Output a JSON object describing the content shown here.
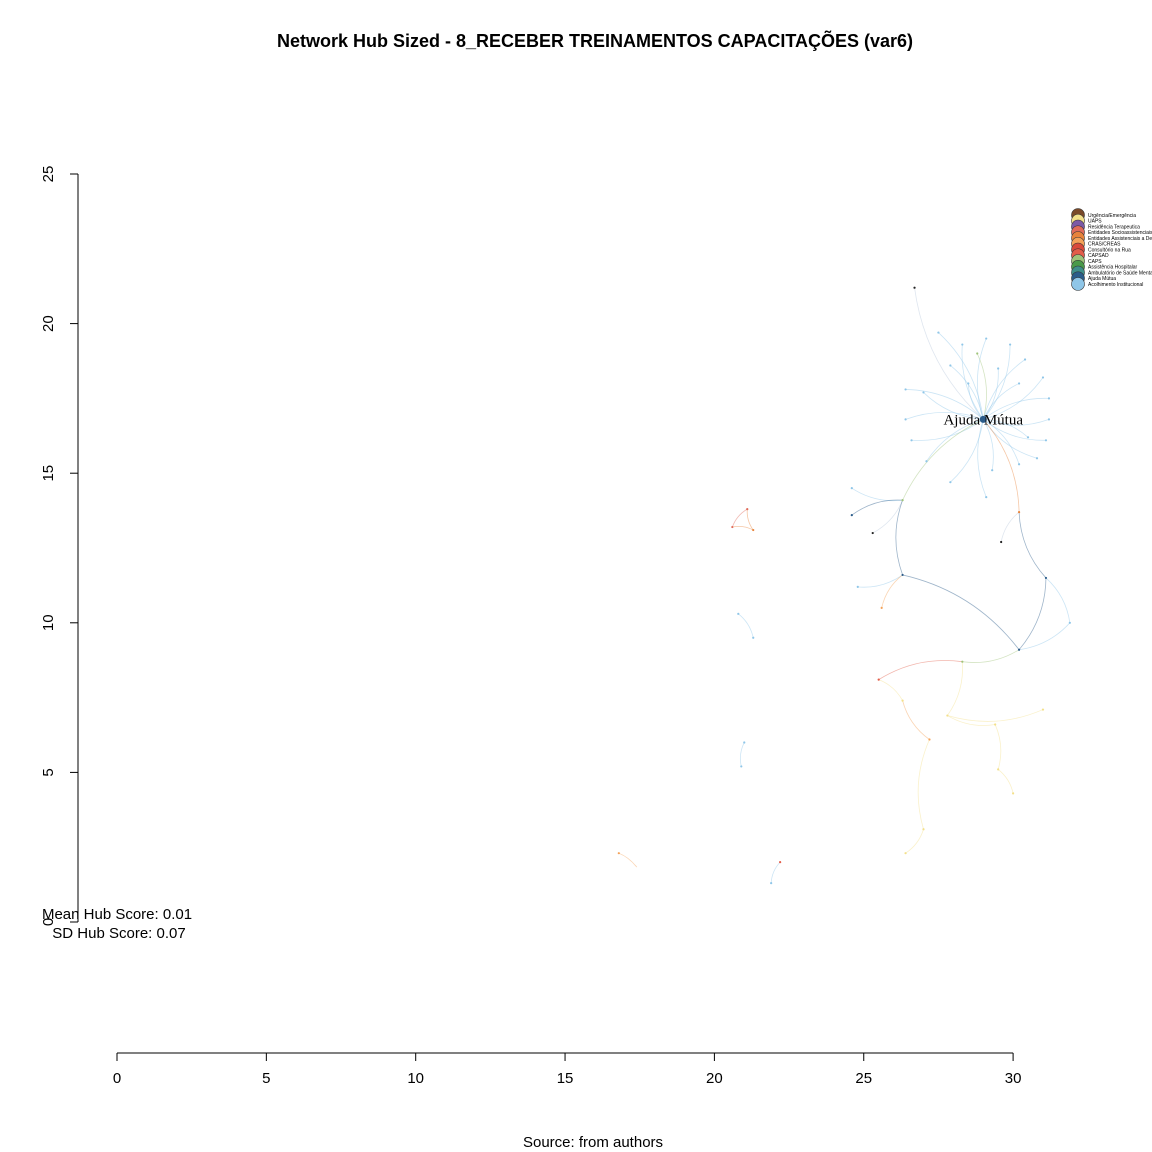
{
  "chart_data": {
    "type": "network",
    "title": "Network Hub Sized - 8_RECEBER TREINAMENTOS CAPACITAÇÕES (var6)",
    "caption": "Source: from authors",
    "x_axis": {
      "ticks": [
        0,
        5,
        10,
        15,
        20,
        25,
        30
      ],
      "range": [
        0,
        30
      ]
    },
    "y_axis": {
      "ticks": [
        0,
        5,
        10,
        15,
        20,
        25
      ],
      "range": [
        0,
        25
      ]
    },
    "stats": {
      "mean": "Mean Hub Score: 0.01",
      "sd": "SD Hub Score: 0.07"
    },
    "hub": {
      "label": "Ajuda Mútua",
      "x": 29.0,
      "y": 16.8,
      "color": "#2b5c8a"
    },
    "legend": {
      "placement": "top-right",
      "items": [
        {
          "label": "Urgência/Emergência",
          "color": "#7a4a2a"
        },
        {
          "label": "UAPS",
          "color": "#f3e08a"
        },
        {
          "label": "Residência Terapeutica",
          "color": "#7b5aa6"
        },
        {
          "label": "Entidades Socioassistenciais",
          "color": "#e06b5a"
        },
        {
          "label": "Entidades Assistenciais a Dep",
          "color": "#e8833a"
        },
        {
          "label": "CRAS/CREAS",
          "color": "#f4a259"
        },
        {
          "label": "Consultório na Rua",
          "color": "#d94a3a"
        },
        {
          "label": "CAPSAD",
          "color": "#e35d4a"
        },
        {
          "label": "CAPS",
          "color": "#9fc47a"
        },
        {
          "label": "Assistência Hospitalar",
          "color": "#4a9a4a"
        },
        {
          "label": "Ambulatório de Saúde Mental",
          "color": "#3f8f8a"
        },
        {
          "label": "Ajuda Mútua",
          "color": "#2b5c8a"
        },
        {
          "label": "Acolhimento Institucional",
          "color": "#8fc6e8"
        }
      ]
    },
    "nodes": [
      {
        "x": 29.0,
        "y": 16.8,
        "c": "#2b5c8a"
      },
      {
        "x": 26.7,
        "y": 21.2,
        "c": "#222222"
      },
      {
        "x": 27.5,
        "y": 19.7,
        "c": "#8fc6e8"
      },
      {
        "x": 28.3,
        "y": 19.3,
        "c": "#8fc6e8"
      },
      {
        "x": 28.8,
        "y": 19.0,
        "c": "#9fc47a"
      },
      {
        "x": 29.1,
        "y": 19.5,
        "c": "#8fc6e8"
      },
      {
        "x": 29.9,
        "y": 19.3,
        "c": "#8fc6e8"
      },
      {
        "x": 30.4,
        "y": 18.8,
        "c": "#8fc6e8"
      },
      {
        "x": 29.5,
        "y": 18.5,
        "c": "#8fc6e8"
      },
      {
        "x": 28.5,
        "y": 18.0,
        "c": "#8fc6e8"
      },
      {
        "x": 27.9,
        "y": 18.6,
        "c": "#8fc6e8"
      },
      {
        "x": 27.0,
        "y": 17.7,
        "c": "#8fc6e8"
      },
      {
        "x": 26.4,
        "y": 17.8,
        "c": "#8fc6e8"
      },
      {
        "x": 30.2,
        "y": 18.0,
        "c": "#8fc6e8"
      },
      {
        "x": 31.0,
        "y": 18.2,
        "c": "#8fc6e8"
      },
      {
        "x": 31.2,
        "y": 17.5,
        "c": "#8fc6e8"
      },
      {
        "x": 31.2,
        "y": 16.8,
        "c": "#8fc6e8"
      },
      {
        "x": 30.5,
        "y": 16.2,
        "c": "#8fc6e8"
      },
      {
        "x": 31.1,
        "y": 16.1,
        "c": "#8fc6e8"
      },
      {
        "x": 30.2,
        "y": 15.3,
        "c": "#8fc6e8"
      },
      {
        "x": 30.8,
        "y": 15.5,
        "c": "#8fc6e8"
      },
      {
        "x": 29.3,
        "y": 15.1,
        "c": "#8fc6e8"
      },
      {
        "x": 27.1,
        "y": 15.4,
        "c": "#8fc6e8"
      },
      {
        "x": 26.6,
        "y": 16.1,
        "c": "#8fc6e8"
      },
      {
        "x": 26.4,
        "y": 16.8,
        "c": "#8fc6e8"
      },
      {
        "x": 27.9,
        "y": 14.7,
        "c": "#8fc6e8"
      },
      {
        "x": 29.1,
        "y": 14.2,
        "c": "#8fc6e8"
      },
      {
        "x": 30.2,
        "y": 13.7,
        "c": "#e8833a"
      },
      {
        "x": 26.3,
        "y": 14.1,
        "c": "#9fc47a"
      },
      {
        "x": 24.6,
        "y": 14.5,
        "c": "#8fc6e8"
      },
      {
        "x": 24.6,
        "y": 13.6,
        "c": "#2b5c8a"
      },
      {
        "x": 25.3,
        "y": 13.0,
        "c": "#222222"
      },
      {
        "x": 29.6,
        "y": 12.7,
        "c": "#222222"
      },
      {
        "x": 26.3,
        "y": 11.6,
        "c": "#2b5c8a"
      },
      {
        "x": 24.8,
        "y": 11.2,
        "c": "#8fc6e8"
      },
      {
        "x": 25.6,
        "y": 10.5,
        "c": "#f4a259"
      },
      {
        "x": 31.1,
        "y": 11.5,
        "c": "#2b5c8a"
      },
      {
        "x": 30.2,
        "y": 9.1,
        "c": "#2b5c8a"
      },
      {
        "x": 31.9,
        "y": 10.0,
        "c": "#8fc6e8"
      },
      {
        "x": 28.3,
        "y": 8.7,
        "c": "#9fc47a"
      },
      {
        "x": 25.5,
        "y": 8.1,
        "c": "#e35d4a"
      },
      {
        "x": 26.3,
        "y": 7.4,
        "c": "#f3e08a"
      },
      {
        "x": 27.2,
        "y": 6.1,
        "c": "#f4a259"
      },
      {
        "x": 27.8,
        "y": 6.9,
        "c": "#f3e08a"
      },
      {
        "x": 29.4,
        "y": 6.6,
        "c": "#f3e08a"
      },
      {
        "x": 29.5,
        "y": 5.1,
        "c": "#f3e08a"
      },
      {
        "x": 31.0,
        "y": 7.1,
        "c": "#f3e08a"
      },
      {
        "x": 30.0,
        "y": 4.3,
        "c": "#f3e08a"
      },
      {
        "x": 27.0,
        "y": 3.1,
        "c": "#f3e08a"
      },
      {
        "x": 26.4,
        "y": 2.3,
        "c": "#f3e08a"
      },
      {
        "x": 21.1,
        "y": 13.8,
        "c": "#e06b5a"
      },
      {
        "x": 20.6,
        "y": 13.2,
        "c": "#e06b5a"
      },
      {
        "x": 21.3,
        "y": 13.1,
        "c": "#e8833a"
      },
      {
        "x": 20.8,
        "y": 10.3,
        "c": "#8fc6e8"
      },
      {
        "x": 21.3,
        "y": 9.5,
        "c": "#8fc6e8"
      },
      {
        "x": 21.0,
        "y": 6.0,
        "c": "#8fc6e8"
      },
      {
        "x": 20.9,
        "y": 5.2,
        "c": "#8fc6e8"
      },
      {
        "x": 16.8,
        "y": 2.3,
        "c": "#f4a259"
      },
      {
        "x": 22.2,
        "y": 2.0,
        "c": "#e35d4a"
      },
      {
        "x": 21.9,
        "y": 1.3,
        "c": "#8fc6e8"
      }
    ],
    "edges": [
      [
        0,
        1
      ],
      [
        0,
        2
      ],
      [
        0,
        3
      ],
      [
        0,
        4
      ],
      [
        0,
        5
      ],
      [
        0,
        6
      ],
      [
        0,
        7
      ],
      [
        0,
        8
      ],
      [
        0,
        9
      ],
      [
        0,
        10
      ],
      [
        0,
        11
      ],
      [
        0,
        12
      ],
      [
        0,
        13
      ],
      [
        0,
        14
      ],
      [
        0,
        15
      ],
      [
        0,
        16
      ],
      [
        0,
        17
      ],
      [
        0,
        18
      ],
      [
        0,
        19
      ],
      [
        0,
        20
      ],
      [
        0,
        21
      ],
      [
        0,
        22
      ],
      [
        0,
        23
      ],
      [
        0,
        24
      ],
      [
        0,
        25
      ],
      [
        0,
        26
      ],
      [
        0,
        27
      ],
      [
        0,
        28
      ],
      [
        28,
        29
      ],
      [
        28,
        30
      ],
      [
        28,
        31
      ],
      [
        28,
        33
      ],
      [
        33,
        34
      ],
      [
        33,
        35
      ],
      [
        33,
        37
      ],
      [
        27,
        36
      ],
      [
        36,
        37
      ],
      [
        37,
        38
      ],
      [
        36,
        38
      ],
      [
        27,
        32
      ],
      [
        37,
        39
      ],
      [
        39,
        40
      ],
      [
        40,
        41
      ],
      [
        41,
        42
      ],
      [
        39,
        43
      ],
      [
        43,
        44
      ],
      [
        44,
        45
      ],
      [
        43,
        46
      ],
      [
        45,
        47
      ],
      [
        42,
        48
      ],
      [
        48,
        49
      ],
      [
        50,
        51
      ],
      [
        51,
        52
      ],
      [
        50,
        52
      ],
      [
        53,
        54
      ],
      [
        55,
        56
      ],
      [
        57,
        57
      ],
      [
        58,
        59
      ]
    ]
  }
}
